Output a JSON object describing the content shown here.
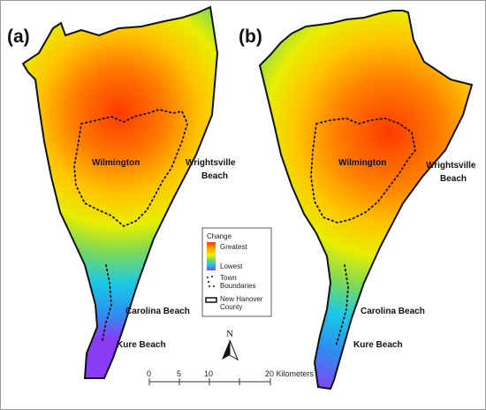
{
  "panels": [
    {
      "label": "(a)",
      "towns": [
        "Wilmington",
        "Wrightsville",
        "Beach",
        "Carolina Beach",
        "Kure Beach"
      ]
    },
    {
      "label": "(b)",
      "towns": [
        "Wilmington",
        "Wrightsville",
        "Beach",
        "Carolina Beach",
        "Kure Beach"
      ]
    }
  ],
  "legend": {
    "title": "Change",
    "greatest": "Greatest",
    "lowest": "Lowest",
    "town_line1": "Town",
    "town_line2": "Boundaries",
    "county_line1": "New Hanover",
    "county_line2": "County",
    "ramp_colors": [
      "#ff3a00",
      "#ff9900",
      "#ffee00",
      "#7ed957",
      "#19c9e6",
      "#2f8cf0",
      "#8a3cf5"
    ]
  },
  "north": {
    "label": "N"
  },
  "scale": {
    "ticks": [
      "0",
      "5",
      "10",
      "20 Kilometers"
    ]
  }
}
